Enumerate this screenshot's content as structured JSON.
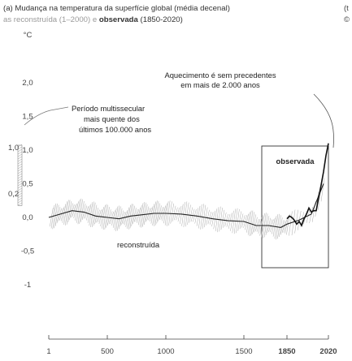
{
  "header": {
    "title_part1": "(a) Mudança na temperatura da superfície global (média decenal)",
    "title_part2": "as reconstruída (1–2000) e ",
    "title_bold": "observada",
    "title_part3": " (1850-2020)",
    "right_letter": "(t",
    "right_symbol": "©"
  },
  "annotations": {
    "unprecedented_line1": "Aquecimento é sem precedentes",
    "unprecedented_line2": "em mais de 2.000 anos",
    "multicentury_line1": "Período multissecular",
    "multicentury_line2": "mais quente dos",
    "multicentury_line3": "últimos 100.000 anos",
    "observed_label": "observada",
    "reconstructed_label": "reconstruída"
  },
  "chart_data": {
    "type": "line",
    "title": "(a) Mudança na temperatura da superfície global (média decenal) as reconstruída (1–2000) e observada (1850-2020)",
    "ylabel": "°C",
    "y_ticks": [
      "2,0",
      "1,5",
      "1,0",
      "0,5",
      "0,0",
      "-0,5",
      "-1"
    ],
    "y_tick_values": [
      2.0,
      1.5,
      1.0,
      0.5,
      0.0,
      -0.5,
      -1.0
    ],
    "x_ticks": [
      "1",
      "500",
      "1000",
      "1500",
      "1850",
      "2020"
    ],
    "x_tick_values": [
      1,
      500,
      1000,
      1500,
      1850,
      2020
    ],
    "ylim": [
      -1.0,
      2.0
    ],
    "grid": false,
    "multicentury_range": {
      "upper_label": "1,0",
      "lower_label": "0,2",
      "upper_value": 1.0,
      "lower_value": 0.2
    },
    "series": [
      {
        "name": "observada",
        "color": "#222222",
        "x": [
          1850,
          1860,
          1870,
          1880,
          1890,
          1900,
          1910,
          1920,
          1930,
          1940,
          1950,
          1960,
          1970,
          1980,
          1990,
          2000,
          2010,
          2020
        ],
        "y": [
          -0.02,
          0.02,
          0.0,
          -0.04,
          -0.1,
          -0.06,
          -0.12,
          -0.02,
          0.05,
          0.14,
          0.08,
          0.1,
          0.1,
          0.3,
          0.48,
          0.68,
          0.92,
          1.1
        ]
      },
      {
        "name": "reconstruída",
        "color": "#222222",
        "x": [
          1,
          100,
          200,
          300,
          400,
          500,
          600,
          700,
          800,
          900,
          1000,
          1100,
          1200,
          1300,
          1400,
          1500,
          1600,
          1700,
          1800,
          1850,
          1900,
          1950,
          2000
        ],
        "y": [
          0.0,
          0.05,
          0.1,
          0.08,
          0.02,
          0.0,
          -0.02,
          0.02,
          0.04,
          0.06,
          0.06,
          0.05,
          0.02,
          -0.02,
          -0.05,
          -0.06,
          -0.12,
          -0.12,
          -0.15,
          -0.1,
          -0.04,
          0.05,
          0.5
        ]
      }
    ]
  }
}
